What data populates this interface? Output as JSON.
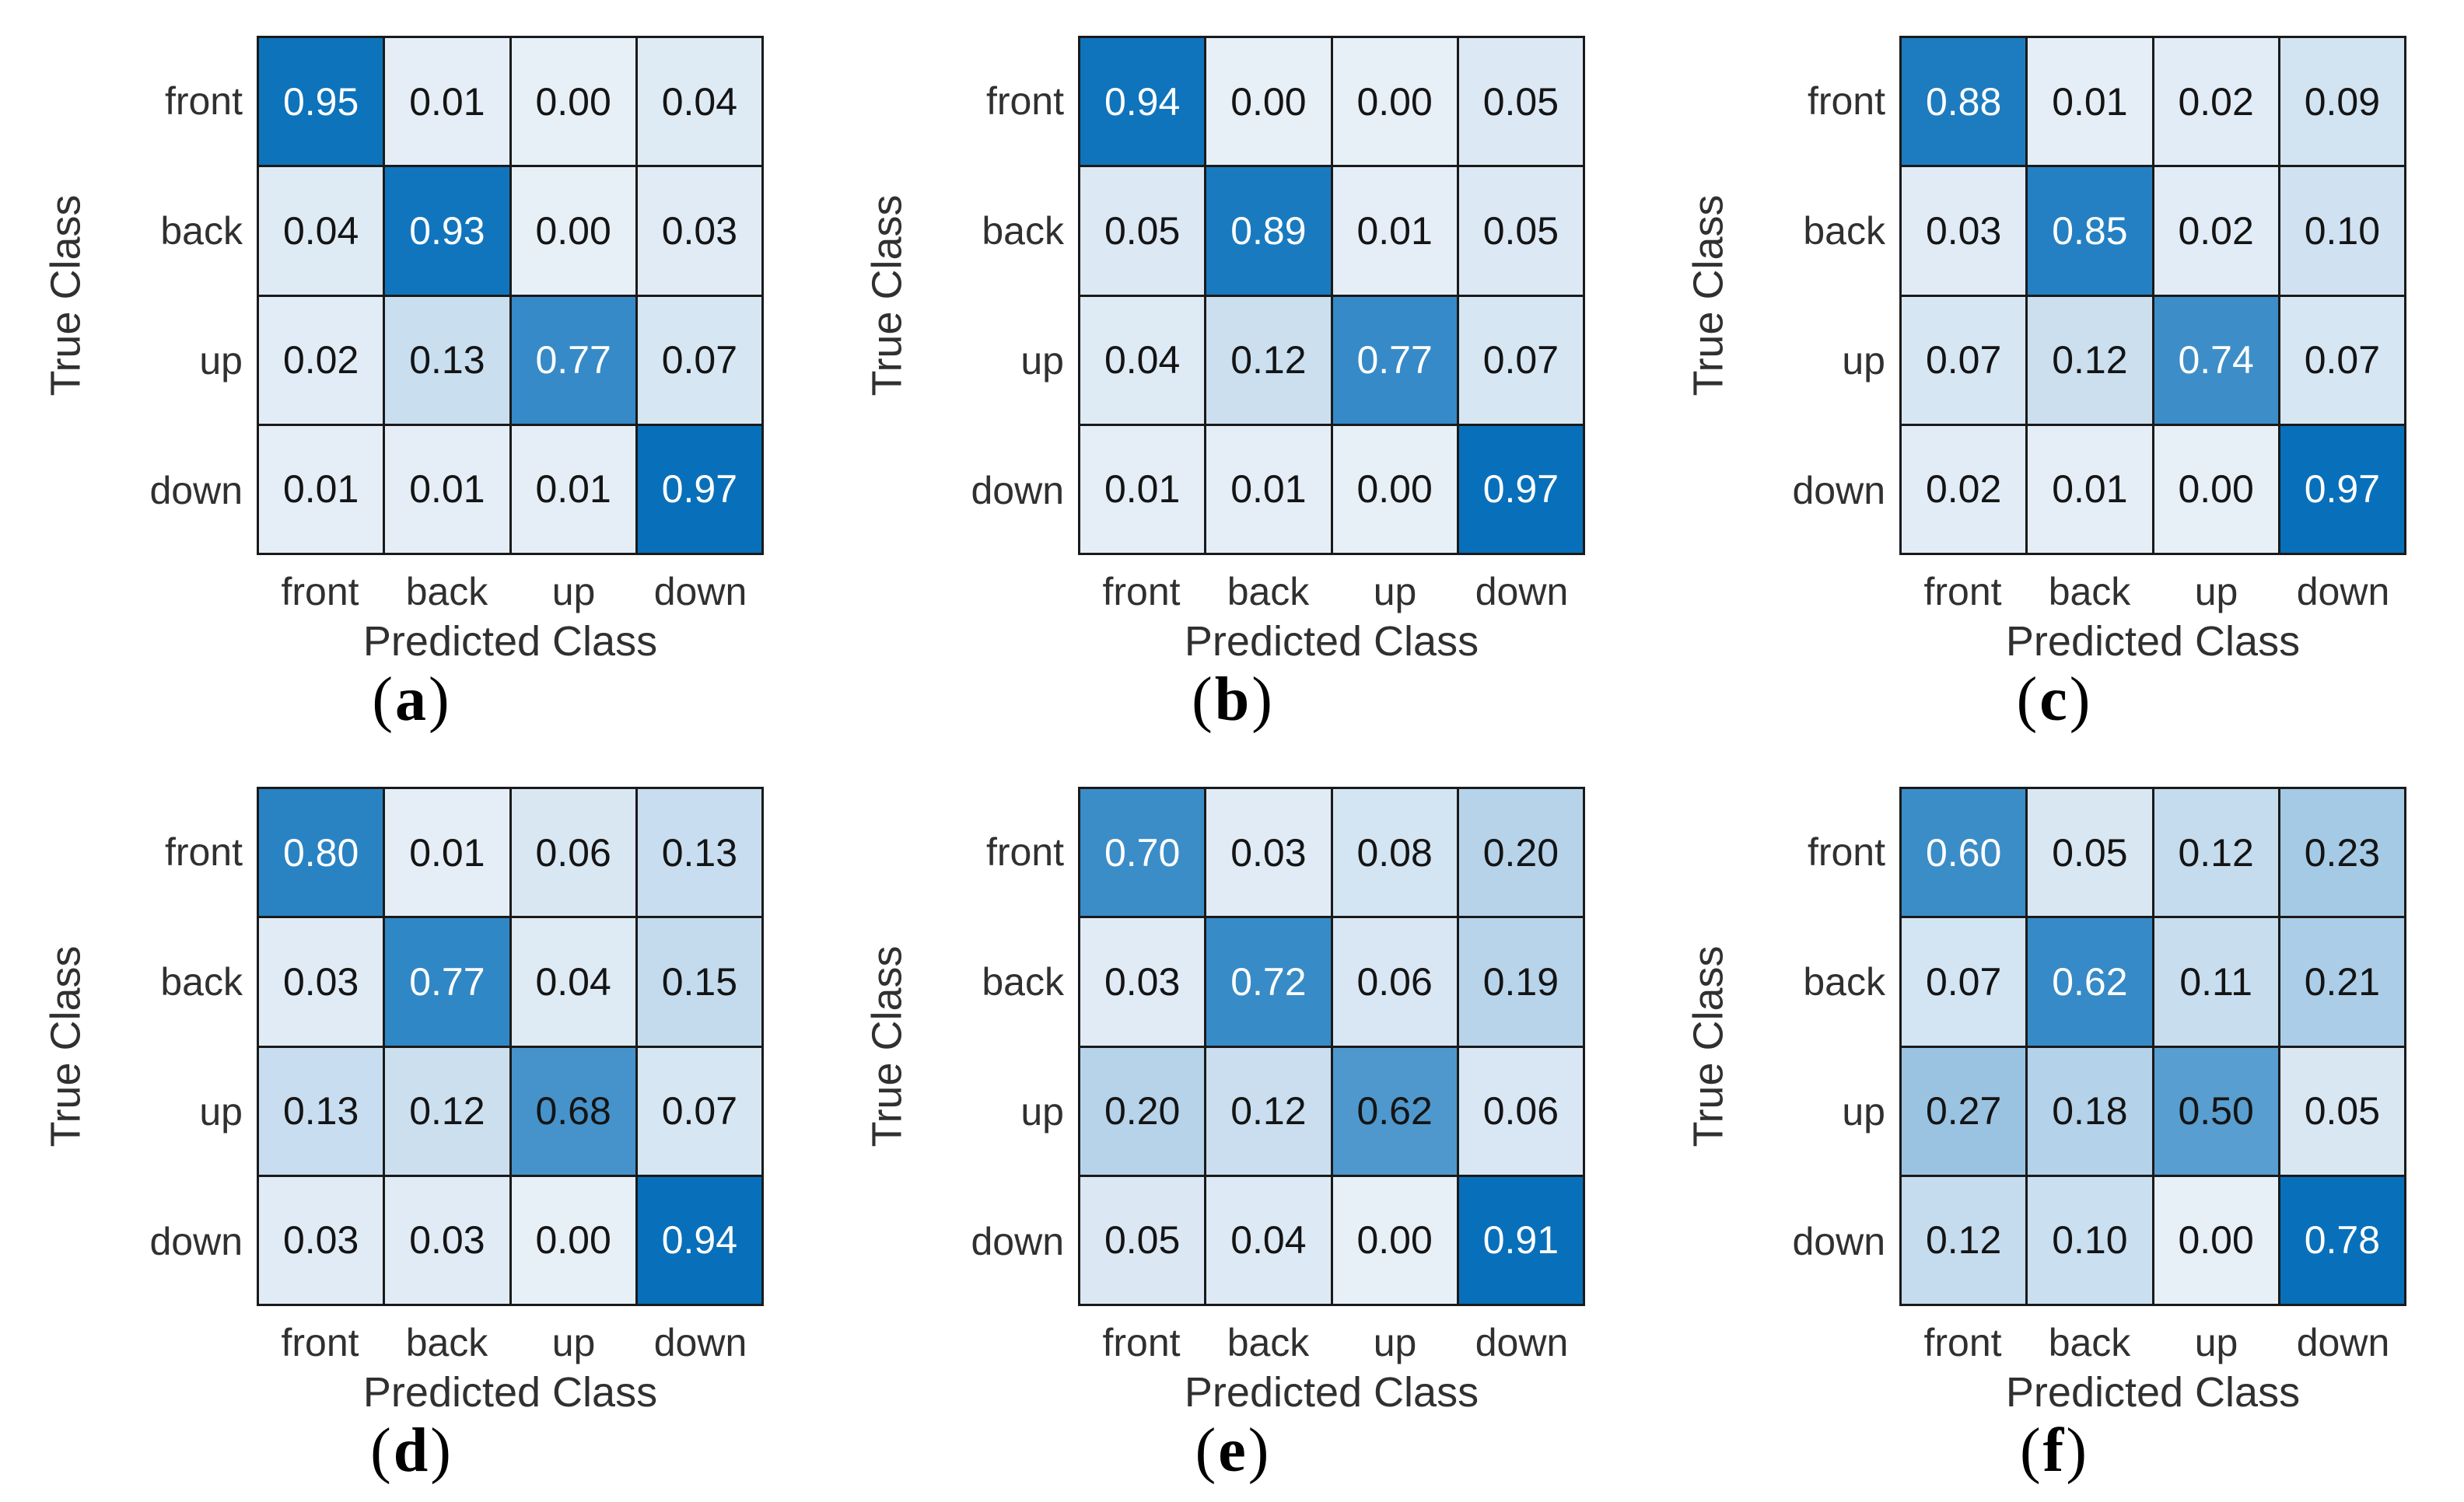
{
  "figure": {
    "xlabel": "Predicted Class",
    "ylabel": "True Class",
    "classes": [
      "front",
      "back",
      "up",
      "down"
    ]
  },
  "colors": {
    "cell_min": "#e7eff7",
    "cell_max": "#0870ba",
    "grid_line": "#1a1a1a",
    "text_dark": "#141414",
    "text_light": "#ffffff",
    "axis_text": "#303030",
    "caption_text": "#000000",
    "white_text_threshold": 0.74
  },
  "chart_data": [
    {
      "type": "heatmap",
      "letter": "a",
      "title": "(a)",
      "xlabel": "Predicted Class",
      "ylabel": "True Class",
      "classes": [
        "front",
        "back",
        "up",
        "down"
      ],
      "matrix": [
        [
          0.95,
          0.01,
          0.0,
          0.04
        ],
        [
          0.04,
          0.93,
          0.0,
          0.03
        ],
        [
          0.02,
          0.13,
          0.77,
          0.07
        ],
        [
          0.01,
          0.01,
          0.01,
          0.97
        ]
      ]
    },
    {
      "type": "heatmap",
      "letter": "b",
      "title": "(b)",
      "xlabel": "Predicted Class",
      "ylabel": "True Class",
      "classes": [
        "front",
        "back",
        "up",
        "down"
      ],
      "matrix": [
        [
          0.94,
          0.0,
          0.0,
          0.05
        ],
        [
          0.05,
          0.89,
          0.01,
          0.05
        ],
        [
          0.04,
          0.12,
          0.77,
          0.07
        ],
        [
          0.01,
          0.01,
          0.0,
          0.97
        ]
      ]
    },
    {
      "type": "heatmap",
      "letter": "c",
      "title": "(c)",
      "xlabel": "Predicted Class",
      "ylabel": "True Class",
      "classes": [
        "front",
        "back",
        "up",
        "down"
      ],
      "matrix": [
        [
          0.88,
          0.01,
          0.02,
          0.09
        ],
        [
          0.03,
          0.85,
          0.02,
          0.1
        ],
        [
          0.07,
          0.12,
          0.74,
          0.07
        ],
        [
          0.02,
          0.01,
          0.0,
          0.97
        ]
      ]
    },
    {
      "type": "heatmap",
      "letter": "d",
      "title": "(d)",
      "xlabel": "Predicted Class",
      "ylabel": "True Class",
      "classes": [
        "front",
        "back",
        "up",
        "down"
      ],
      "matrix": [
        [
          0.8,
          0.01,
          0.06,
          0.13
        ],
        [
          0.03,
          0.77,
          0.04,
          0.15
        ],
        [
          0.13,
          0.12,
          0.68,
          0.07
        ],
        [
          0.03,
          0.03,
          0.0,
          0.94
        ]
      ]
    },
    {
      "type": "heatmap",
      "letter": "e",
      "title": "(e)",
      "xlabel": "Predicted Class",
      "ylabel": "True Class",
      "classes": [
        "front",
        "back",
        "up",
        "down"
      ],
      "matrix": [
        [
          0.7,
          0.03,
          0.08,
          0.2
        ],
        [
          0.03,
          0.72,
          0.06,
          0.19
        ],
        [
          0.2,
          0.12,
          0.62,
          0.06
        ],
        [
          0.05,
          0.04,
          0.0,
          0.91
        ]
      ]
    },
    {
      "type": "heatmap",
      "letter": "f",
      "title": "(f)",
      "xlabel": "Predicted Class",
      "ylabel": "True Class",
      "classes": [
        "front",
        "back",
        "up",
        "down"
      ],
      "matrix": [
        [
          0.6,
          0.05,
          0.12,
          0.23
        ],
        [
          0.07,
          0.62,
          0.11,
          0.21
        ],
        [
          0.27,
          0.18,
          0.5,
          0.05
        ],
        [
          0.12,
          0.1,
          0.0,
          0.78
        ]
      ]
    }
  ]
}
